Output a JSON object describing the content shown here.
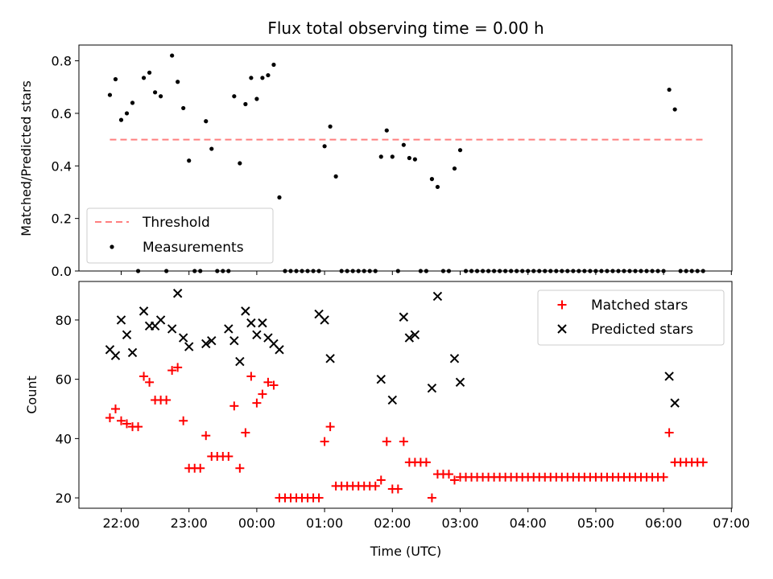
{
  "chart_data": {
    "title": "Flux total observing time = 0.00 h",
    "xlabel": "Time (UTC)",
    "x_ticks": [
      "22:00",
      "23:00",
      "00:00",
      "01:00",
      "02:00",
      "03:00",
      "04:00",
      "05:00",
      "06:00",
      "07:00"
    ],
    "colors": {
      "threshold": "#ff7f7f",
      "measurements": "#000000",
      "matched": "#ff0000",
      "predicted": "#000000"
    },
    "panels": [
      {
        "type": "scatter",
        "ylabel": "Matched/Predicted stars",
        "ylim": [
          0,
          0.86
        ],
        "y_ticks": [
          "0.0",
          "0.2",
          "0.4",
          "0.6",
          "0.8"
        ],
        "y_tick_values": [
          0,
          0.2,
          0.4,
          0.6,
          0.8
        ],
        "legend_position": "lower-left",
        "threshold": {
          "name": "Threshold",
          "value": 0.5,
          "x_range": [
            "21:50",
            "06:35"
          ]
        },
        "series": [
          {
            "name": "Measurements",
            "x": [
              "21:50",
              "21:55",
              "22:00",
              "22:05",
              "22:10",
              "22:15",
              "22:20",
              "22:25",
              "22:30",
              "22:35",
              "22:40",
              "22:45",
              "22:50",
              "22:55",
              "23:00",
              "23:05",
              "23:10",
              "23:15",
              "23:20",
              "23:25",
              "23:30",
              "23:35",
              "23:40",
              "23:45",
              "23:50",
              "23:55",
              "00:00",
              "00:05",
              "00:10",
              "00:15",
              "00:20",
              "00:25",
              "00:30",
              "00:35",
              "00:40",
              "00:45",
              "00:50",
              "00:55",
              "01:00",
              "01:05",
              "01:10",
              "01:15",
              "01:20",
              "01:25",
              "01:30",
              "01:35",
              "01:40",
              "01:45",
              "01:50",
              "01:55",
              "02:00",
              "02:05",
              "02:10",
              "02:15",
              "02:20",
              "02:25",
              "02:30",
              "02:35",
              "02:40",
              "02:45",
              "02:50",
              "02:55",
              "03:00",
              "03:05",
              "03:10",
              "03:15",
              "03:20",
              "03:25",
              "03:30",
              "03:35",
              "03:40",
              "03:45",
              "03:50",
              "03:55",
              "04:00",
              "04:05",
              "04:10",
              "04:15",
              "04:20",
              "04:25",
              "04:30",
              "04:35",
              "04:40",
              "04:45",
              "04:50",
              "04:55",
              "05:00",
              "05:05",
              "05:10",
              "05:15",
              "05:20",
              "05:25",
              "05:30",
              "05:35",
              "05:40",
              "05:45",
              "05:50",
              "05:55",
              "06:00",
              "06:05",
              "06:10",
              "06:15",
              "06:20",
              "06:25",
              "06:30",
              "06:35"
            ],
            "y": [
              0.67,
              0.73,
              0.575,
              0.6,
              0.64,
              0,
              0.735,
              0.755,
              0.68,
              0.665,
              0,
              0.82,
              0.72,
              0.62,
              0.42,
              0,
              0,
              0.57,
              0.465,
              0,
              0,
              0,
              0.665,
              0.41,
              0.635,
              0.735,
              0.655,
              0.735,
              0.745,
              0.785,
              0.28,
              0,
              0,
              0,
              0,
              0,
              0,
              0,
              0.475,
              0.55,
              0.36,
              0,
              0,
              0,
              0,
              0,
              0,
              0,
              0.435,
              0.535,
              0.435,
              0,
              0.48,
              0.43,
              0.425,
              0,
              0,
              0.35,
              0.32,
              0,
              0,
              0.39,
              0.46,
              0,
              0,
              0,
              0,
              0,
              0,
              0,
              0,
              0,
              0,
              0,
              0,
              0,
              0,
              0,
              0,
              0,
              0,
              0,
              0,
              0,
              0,
              0,
              0,
              0,
              0,
              0,
              0,
              0,
              0,
              0,
              0,
              0,
              0,
              0,
              0,
              0.69,
              0.615,
              0,
              0,
              0,
              0,
              0
            ]
          }
        ]
      },
      {
        "type": "scatter",
        "ylabel": "Count",
        "ylim": [
          16.5,
          93
        ],
        "y_ticks": [
          "20",
          "40",
          "60",
          "80"
        ],
        "y_tick_values": [
          20,
          40,
          60,
          80
        ],
        "legend_position": "upper-right",
        "series": [
          {
            "name": "Matched stars",
            "marker": "plus",
            "x": [
              "21:50",
              "21:55",
              "22:00",
              "22:05",
              "22:10",
              "22:15",
              "22:20",
              "22:25",
              "22:30",
              "22:35",
              "22:40",
              "22:45",
              "22:50",
              "22:55",
              "23:00",
              "23:05",
              "23:10",
              "23:15",
              "23:20",
              "23:25",
              "23:30",
              "23:35",
              "23:40",
              "23:45",
              "23:50",
              "23:55",
              "00:00",
              "00:05",
              "00:10",
              "00:15",
              "00:20",
              "00:25",
              "00:30",
              "00:35",
              "00:40",
              "00:45",
              "00:50",
              "00:55",
              "01:00",
              "01:05",
              "01:10",
              "01:15",
              "01:20",
              "01:25",
              "01:30",
              "01:35",
              "01:40",
              "01:45",
              "01:50",
              "01:55",
              "02:00",
              "02:05",
              "02:10",
              "02:15",
              "02:20",
              "02:25",
              "02:30",
              "02:35",
              "02:40",
              "02:45",
              "02:50",
              "02:55",
              "03:00",
              "03:05",
              "03:10",
              "03:15",
              "03:20",
              "03:25",
              "03:30",
              "03:35",
              "03:40",
              "03:45",
              "03:50",
              "03:55",
              "04:00",
              "04:05",
              "04:10",
              "04:15",
              "04:20",
              "04:25",
              "04:30",
              "04:35",
              "04:40",
              "04:45",
              "04:50",
              "04:55",
              "05:00",
              "05:05",
              "05:10",
              "05:15",
              "05:20",
              "05:25",
              "05:30",
              "05:35",
              "05:40",
              "05:45",
              "05:50",
              "05:55",
              "06:00",
              "06:05",
              "06:10",
              "06:15",
              "06:20",
              "06:25",
              "06:30",
              "06:35"
            ],
            "y": [
              47,
              50,
              46,
              45,
              44,
              44,
              61,
              59,
              53,
              53,
              53,
              63,
              64,
              46,
              30,
              30,
              30,
              41,
              34,
              34,
              34,
              34,
              51,
              30,
              42,
              61,
              52,
              55,
              59,
              58,
              20,
              20,
              20,
              20,
              20,
              20,
              20,
              20,
              39,
              44,
              24,
              24,
              24,
              24,
              24,
              24,
              24,
              24,
              26,
              39,
              23,
              23,
              39,
              32,
              32,
              32,
              32,
              20,
              28,
              28,
              28,
              26,
              27,
              27,
              27,
              27,
              27,
              27,
              27,
              27,
              27,
              27,
              27,
              27,
              27,
              27,
              27,
              27,
              27,
              27,
              27,
              27,
              27,
              27,
              27,
              27,
              27,
              27,
              27,
              27,
              27,
              27,
              27,
              27,
              27,
              27,
              27,
              27,
              27,
              42,
              32,
              32,
              32,
              32,
              32,
              32
            ]
          },
          {
            "name": "Predicted stars",
            "marker": "x",
            "x": [
              "21:50",
              "21:55",
              "22:00",
              "22:05",
              "22:10",
              "22:20",
              "22:25",
              "22:30",
              "22:35",
              "22:45",
              "22:50",
              "22:55",
              "23:00",
              "23:15",
              "23:20",
              "23:35",
              "23:40",
              "23:45",
              "23:50",
              "23:55",
              "00:00",
              "00:05",
              "00:10",
              "00:15",
              "00:20",
              "00:55",
              "01:00",
              "01:05",
              "01:50",
              "02:00",
              "02:10",
              "02:15",
              "02:20",
              "02:35",
              "02:40",
              "02:55",
              "03:00",
              "06:05",
              "06:10"
            ],
            "y": [
              70,
              68,
              80,
              75,
              69,
              83,
              78,
              78,
              80,
              77,
              89,
              74,
              71,
              72,
              73,
              77,
              73,
              66,
              83,
              79,
              75,
              79,
              74,
              72,
              70,
              82,
              80,
              67,
              60,
              53,
              81,
              74,
              75,
              57,
              88,
              67,
              59,
              61,
              52
            ]
          }
        ]
      }
    ]
  }
}
